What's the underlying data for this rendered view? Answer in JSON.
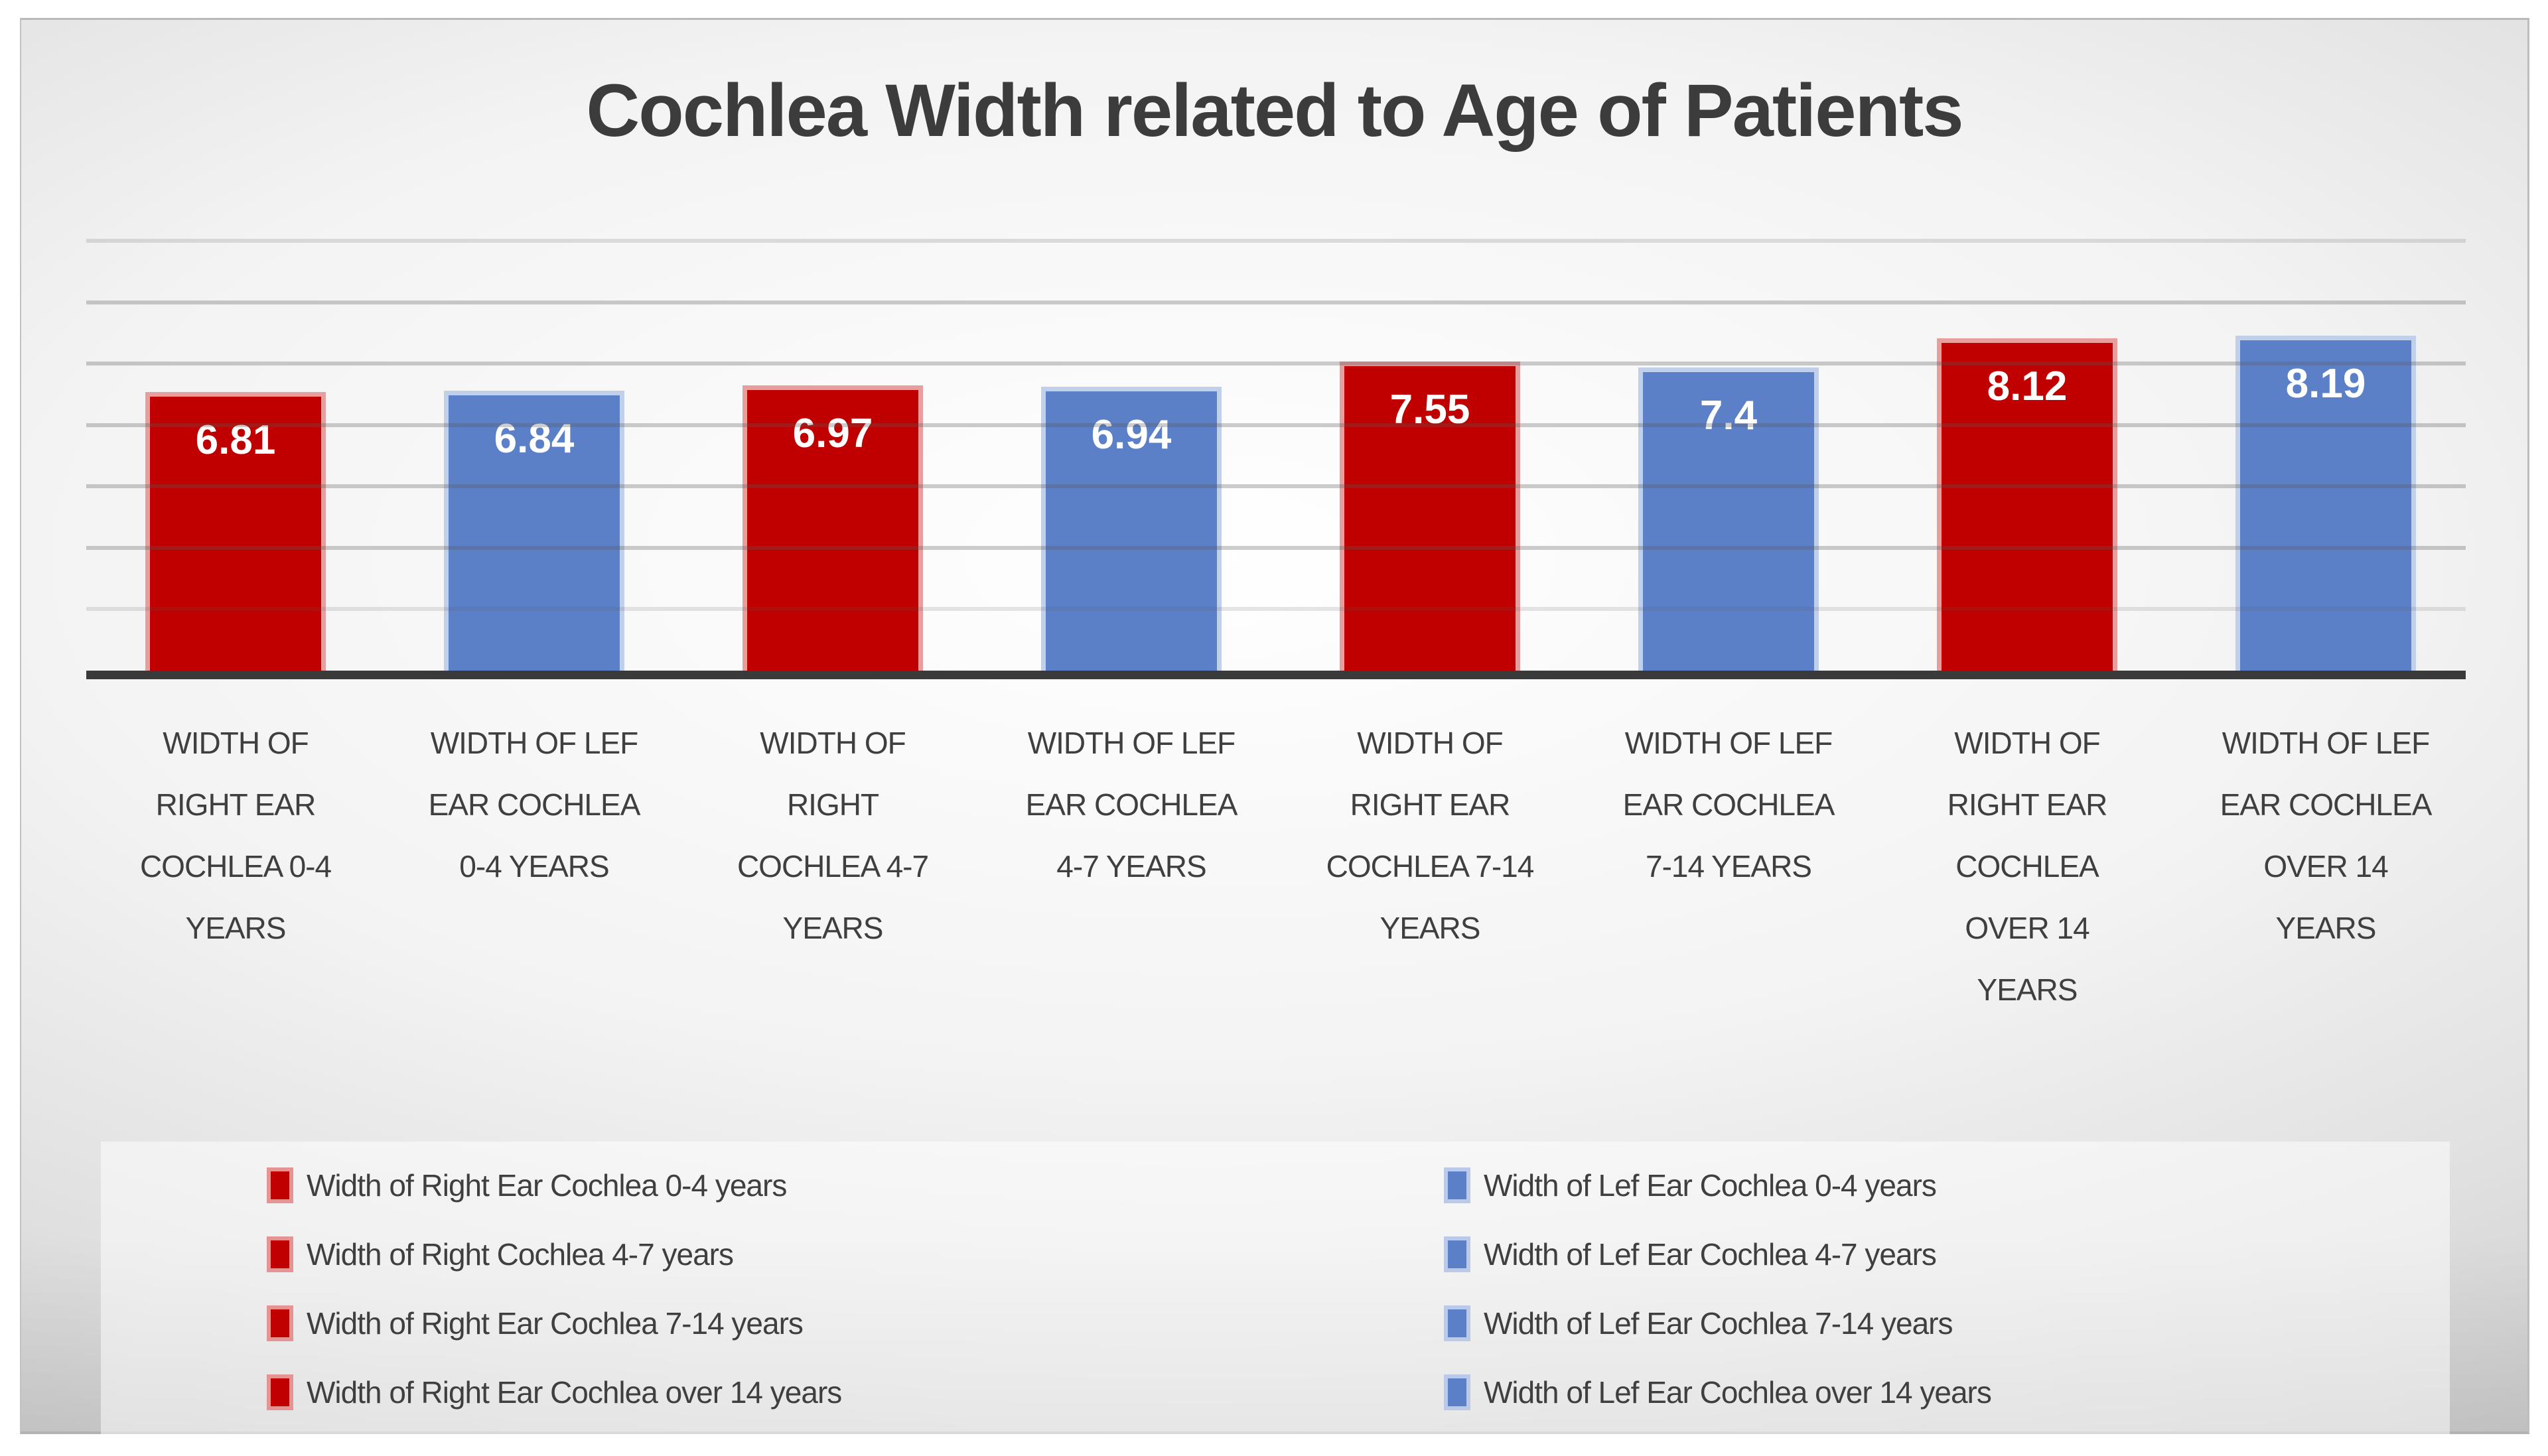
{
  "colors": {
    "red_series": "#C00000",
    "blue_series": "#5B80C8",
    "title_text": "#3C3C3C",
    "label_text": "#3F3F3F",
    "axis_line": "#3A3A3A",
    "gridline_rgba": "rgba(88,88,88,0.30)",
    "gridline_top_rgba": "rgba(120,120,120,0.22)",
    "gridline_bottom_rgba": "rgba(88,88,88,0.15)",
    "legend_panel_rgba": "rgba(255,255,255,0.50)"
  },
  "chart_data": {
    "type": "bar",
    "title": "Cochlea Width related to Age of Patients",
    "xlabel": "",
    "ylabel": "",
    "ylim": [
      0,
      10.5
    ],
    "gridlines": [
      1.5,
      3,
      4.5,
      6,
      7.5,
      9,
      10.5
    ],
    "grid": true,
    "legend_position": "bottom-two-columns",
    "bars": [
      {
        "category": "WIDTH OF\nRIGHT EAR\nCOCHLEA 0-4\nYEARS",
        "value": 6.81,
        "value_label": "6.81",
        "series": "right"
      },
      {
        "category": "WIDTH OF LEF\nEAR COCHLEA\n0-4 YEARS",
        "value": 6.84,
        "value_label": "6.84",
        "series": "left"
      },
      {
        "category": "WIDTH OF\nRIGHT\nCOCHLEA 4-7\nYEARS",
        "value": 6.97,
        "value_label": "6.97",
        "series": "right"
      },
      {
        "category": "WIDTH OF LEF\nEAR COCHLEA\n4-7  YEARS",
        "value": 6.94,
        "value_label": "6.94",
        "series": "left"
      },
      {
        "category": "WIDTH OF\nRIGHT EAR\nCOCHLEA 7-14\nYEARS",
        "value": 7.55,
        "value_label": "7.55",
        "series": "right"
      },
      {
        "category": "WIDTH OF LEF\nEAR COCHLEA\n7-14  YEARS",
        "value": 7.4,
        "value_label": "7.4",
        "series": "left"
      },
      {
        "category": "WIDTH OF\nRIGHT EAR\nCOCHLEA\nOVER 14\nYEARS",
        "value": 8.12,
        "value_label": "8.12",
        "series": "right"
      },
      {
        "category": "WIDTH OF LEF\nEAR COCHLEA\nOVER 14\nYEARS",
        "value": 8.19,
        "value_label": "8.19",
        "series": "left"
      }
    ],
    "legend": {
      "left_column": [
        {
          "label": "Width of Right Ear Cochlea 0-4 years",
          "series": "right"
        },
        {
          "label": "Width of Right Cochlea 4-7 years",
          "series": "right"
        },
        {
          "label": "Width of Right Ear Cochlea 7-14 years",
          "series": "right"
        },
        {
          "label": "Width of Right Ear Cochlea over 14 years",
          "series": "right"
        }
      ],
      "right_column": [
        {
          "label": "Width of Lef Ear Cochlea 0-4 years",
          "series": "left"
        },
        {
          "label": "Width of Lef Ear Cochlea 4-7  years",
          "series": "left"
        },
        {
          "label": "Width of Lef Ear Cochlea 7-14  years",
          "series": "left"
        },
        {
          "label": "Width of Lef Ear Cochlea over 14  years",
          "series": "left"
        }
      ]
    }
  }
}
